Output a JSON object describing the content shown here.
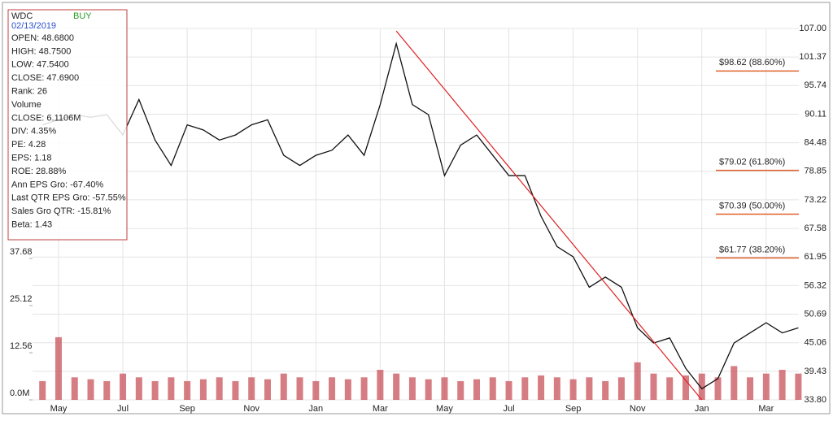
{
  "chart_data": {
    "type": "line",
    "categories": [
      null,
      "May",
      null,
      null,
      null,
      "Jul",
      null,
      null,
      null,
      "Sep",
      null,
      null,
      null,
      "Nov",
      null,
      null,
      null,
      "Jan",
      null,
      null,
      null,
      "Mar",
      null,
      null,
      null,
      "May",
      null,
      null,
      null,
      "Jul",
      null,
      null,
      null,
      "Sep",
      null,
      null,
      null,
      "Nov",
      null,
      null,
      null,
      "Jan",
      null,
      null,
      null,
      "Mar",
      null,
      null
    ],
    "series": [
      {
        "name": "WDC",
        "color": "#111111",
        "values": [
          88,
          89,
          90,
          89.5,
          90,
          86,
          93,
          85,
          80,
          88,
          87,
          85,
          86,
          88,
          89,
          82,
          80,
          82,
          83,
          86,
          82,
          92,
          104,
          92,
          90,
          78,
          84,
          86,
          82,
          78,
          78,
          70,
          64,
          62,
          56,
          58,
          56,
          48,
          45,
          46,
          40,
          36,
          38,
          45,
          47,
          49,
          47,
          48
        ]
      },
      {
        "name": "Volume",
        "color": "#c8505a",
        "axis": "y2",
        "values": [
          5,
          16.7,
          6,
          5.5,
          5,
          7,
          6,
          5,
          6,
          5,
          5.5,
          6,
          5,
          6,
          5.5,
          7,
          6,
          5,
          6,
          5.5,
          6,
          8,
          7,
          6,
          5.5,
          6,
          5,
          5.5,
          6,
          5,
          6,
          6.5,
          6,
          5.5,
          6,
          5,
          6,
          10,
          7,
          6,
          6.5,
          7,
          6,
          9,
          6,
          7,
          8,
          7
        ]
      }
    ],
    "trendline": {
      "color": "#e02020",
      "values": [
        null,
        null,
        null,
        null,
        null,
        null,
        null,
        null,
        null,
        null,
        null,
        null,
        null,
        null,
        null,
        null,
        null,
        null,
        null,
        null,
        null,
        null,
        106.5,
        102.67,
        98.85,
        95.02,
        91.19,
        87.37,
        83.54,
        79.72,
        75.89,
        72.06,
        68.24,
        64.41,
        60.59,
        56.76,
        52.93,
        49.11,
        45.28,
        41.45,
        37.63,
        33.8,
        null,
        null,
        null,
        null,
        null,
        null
      ]
    },
    "levels": [
      {
        "value": 98.62,
        "label": "$98.62 (88.60%)"
      },
      {
        "value": 79.02,
        "label": "$79.02 (61.80%)"
      },
      {
        "value": 70.39,
        "label": "$70.39 (50.00%)"
      },
      {
        "value": 61.77,
        "label": "$61.77 (38.20%)"
      }
    ],
    "ylim": [
      33.8,
      107
    ],
    "yticks": [
      {
        "value": 33.8,
        "label": "33.80"
      },
      39.43,
      45.06,
      50.69,
      56.32,
      61.95,
      67.58,
      73.22,
      78.85,
      84.48,
      90.11,
      95.74,
      101.37,
      {
        "value": 107,
        "label": "107.00"
      }
    ],
    "y2lim": [
      0,
      98.96
    ],
    "y2ticks": [
      {
        "value": 0,
        "label": "0.0M"
      },
      12.56,
      25.12,
      37.68
    ],
    "grid": true,
    "info": {
      "ticker": "WDC",
      "signal": "BUY",
      "date": "02/13/2019",
      "lines": [
        "OPEN: 48.6800",
        "HIGH: 48.7500",
        "LOW: 47.5400",
        "CLOSE: 47.6900",
        "Rank: 26",
        "Volume",
        "CLOSE: 6.1106M",
        "DIV: 4.35%",
        "PE: 4.28",
        "EPS: 1.18",
        "ROE: 28.88%",
        "Ann EPS Gro: -67.40%",
        "Last QTR EPS Gro: -57.55%",
        "Sales Gro QTR: -15.81%",
        "Beta: 1.43"
      ]
    }
  }
}
